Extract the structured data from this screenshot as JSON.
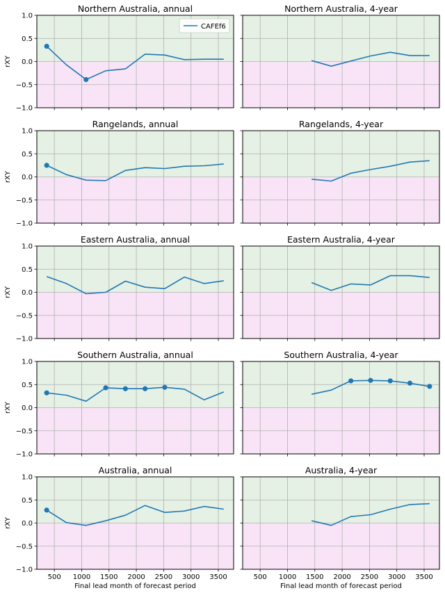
{
  "chart_data": {
    "type": "line",
    "rows": 5,
    "cols": 2,
    "ylim": [
      -1.0,
      1.0
    ],
    "xlim": [
      180,
      3780
    ],
    "yticks": [
      1.0,
      0.5,
      0.0,
      -0.5,
      -1.0
    ],
    "ytick_labels": [
      "1.0",
      "0.5",
      "0.0",
      "−0.5",
      "−1.0"
    ],
    "xticks": [
      500,
      1000,
      1500,
      2000,
      2500,
      3000,
      3500
    ],
    "xtick_labels": [
      "500",
      "1000",
      "1500",
      "2000",
      "2500",
      "3000",
      "3500"
    ],
    "xlabel": "Final lead month of forecast period",
    "ylabel": "rXY",
    "grid": true,
    "legend": {
      "location": "top-right",
      "entries": [
        "CAFEf6"
      ]
    },
    "colors": {
      "line": "#1f77b4",
      "positive_region": "#e5f1e4",
      "negative_region": "#f8e4f6",
      "grid": "#b0b0b0"
    },
    "panels": [
      {
        "title": "Northern Australia, annual",
        "x": [
          360,
          720,
          1080,
          1440,
          1800,
          2160,
          2520,
          2880,
          3240,
          3600
        ],
        "y": [
          0.33,
          -0.07,
          -0.39,
          -0.2,
          -0.16,
          0.16,
          0.14,
          0.04,
          0.05,
          0.05
        ],
        "markers": [
          0,
          2
        ]
      },
      {
        "title": "Northern Australia, 4-year",
        "x": [
          1440,
          1800,
          2160,
          2520,
          2880,
          3240,
          3600
        ],
        "y": [
          0.02,
          -0.1,
          0.01,
          0.12,
          0.2,
          0.13,
          0.13
        ],
        "markers": []
      },
      {
        "title": "Rangelands, annual",
        "x": [
          360,
          720,
          1080,
          1440,
          1800,
          2160,
          2520,
          2880,
          3240,
          3600
        ],
        "y": [
          0.25,
          0.05,
          -0.07,
          -0.08,
          0.14,
          0.2,
          0.18,
          0.23,
          0.24,
          0.28
        ],
        "markers": [
          0
        ]
      },
      {
        "title": "Rangelands, 4-year",
        "x": [
          1440,
          1800,
          2160,
          2520,
          2880,
          3240,
          3600
        ],
        "y": [
          -0.05,
          -0.09,
          0.08,
          0.16,
          0.23,
          0.32,
          0.35
        ],
        "markers": []
      },
      {
        "title": "Eastern Australia, annual",
        "x": [
          360,
          720,
          1080,
          1440,
          1800,
          2160,
          2520,
          2880,
          3240,
          3600
        ],
        "y": [
          0.34,
          0.19,
          -0.03,
          0.0,
          0.24,
          0.11,
          0.08,
          0.33,
          0.19,
          0.25
        ],
        "markers": []
      },
      {
        "title": "Eastern Australia, 4-year",
        "x": [
          1440,
          1800,
          2160,
          2520,
          2880,
          3240,
          3600
        ],
        "y": [
          0.21,
          0.04,
          0.18,
          0.16,
          0.36,
          0.36,
          0.32
        ],
        "markers": []
      },
      {
        "title": "Southern Australia, annual",
        "x": [
          360,
          720,
          1080,
          1440,
          1800,
          2160,
          2520,
          2880,
          3240,
          3600
        ],
        "y": [
          0.32,
          0.27,
          0.14,
          0.43,
          0.41,
          0.41,
          0.44,
          0.4,
          0.17,
          0.34
        ],
        "markers": [
          0,
          3,
          4,
          5,
          6
        ]
      },
      {
        "title": "Southern Australia, 4-year",
        "x": [
          1440,
          1800,
          2160,
          2520,
          2880,
          3240,
          3600
        ],
        "y": [
          0.29,
          0.38,
          0.58,
          0.59,
          0.58,
          0.53,
          0.46
        ],
        "markers": [
          2,
          3,
          4,
          5,
          6
        ]
      },
      {
        "title": "Australia, annual",
        "x": [
          360,
          720,
          1080,
          1440,
          1800,
          2160,
          2520,
          2880,
          3240,
          3600
        ],
        "y": [
          0.28,
          0.01,
          -0.05,
          0.05,
          0.17,
          0.38,
          0.23,
          0.26,
          0.36,
          0.3
        ],
        "markers": [
          0
        ]
      },
      {
        "title": "Australia, 4-year",
        "x": [
          1440,
          1800,
          2160,
          2520,
          2880,
          3240,
          3600
        ],
        "y": [
          0.05,
          -0.05,
          0.14,
          0.18,
          0.3,
          0.4,
          0.42
        ],
        "markers": []
      }
    ]
  }
}
